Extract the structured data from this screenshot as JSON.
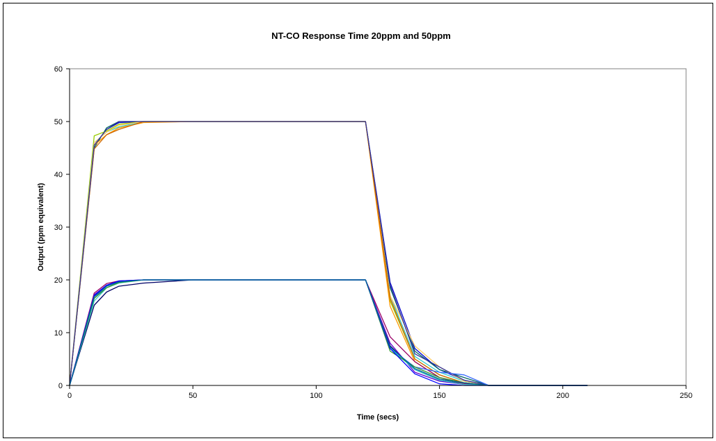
{
  "chart_data": {
    "type": "line",
    "title": "NT-CO Response Time 20ppm and 50ppm",
    "xlabel": "Time (secs)",
    "ylabel": "Output (ppm equivalent)",
    "xlim": [
      0,
      250
    ],
    "ylim": [
      0,
      60
    ],
    "x_ticks": [
      0,
      50,
      100,
      150,
      200,
      250
    ],
    "y_ticks": [
      0,
      10,
      20,
      30,
      40,
      50,
      60
    ],
    "grid": false,
    "legend": "none",
    "series": [
      {
        "color": "#0000cc",
        "points": [
          [
            0,
            0
          ],
          [
            10,
            45.5
          ],
          [
            15,
            48.5
          ],
          [
            20,
            49.8
          ],
          [
            30,
            50
          ],
          [
            50,
            50
          ],
          [
            120,
            50
          ],
          [
            130,
            19.5
          ],
          [
            140,
            7
          ],
          [
            150,
            3
          ],
          [
            160,
            1
          ],
          [
            170,
            0
          ],
          [
            210,
            0
          ]
        ]
      },
      {
        "color": "#006666",
        "points": [
          [
            0,
            0
          ],
          [
            10,
            45
          ],
          [
            15,
            48.8
          ],
          [
            20,
            50
          ],
          [
            30,
            50
          ],
          [
            50,
            50
          ],
          [
            120,
            50
          ],
          [
            130,
            18.5
          ],
          [
            140,
            6.5
          ],
          [
            150,
            3
          ],
          [
            160,
            1.5
          ],
          [
            170,
            0
          ],
          [
            210,
            0
          ]
        ]
      },
      {
        "color": "#99cc00",
        "points": [
          [
            0,
            0
          ],
          [
            10,
            47.3
          ],
          [
            15,
            48.2
          ],
          [
            20,
            49.5
          ],
          [
            30,
            50
          ],
          [
            50,
            50
          ],
          [
            120,
            50
          ],
          [
            130,
            16
          ],
          [
            140,
            5
          ],
          [
            150,
            2
          ],
          [
            160,
            0.5
          ],
          [
            170,
            0
          ],
          [
            210,
            0
          ]
        ]
      },
      {
        "color": "#33cccc",
        "points": [
          [
            0,
            0
          ],
          [
            10,
            46
          ],
          [
            15,
            48
          ],
          [
            20,
            49
          ],
          [
            30,
            50
          ],
          [
            50,
            50
          ],
          [
            120,
            50
          ],
          [
            130,
            17
          ],
          [
            140,
            5.5
          ],
          [
            150,
            2.5
          ],
          [
            160,
            0.8
          ],
          [
            170,
            0
          ],
          [
            210,
            0
          ]
        ]
      },
      {
        "color": "#ff9900",
        "points": [
          [
            0,
            0
          ],
          [
            10,
            45.5
          ],
          [
            15,
            47.5
          ],
          [
            20,
            48.8
          ],
          [
            30,
            49.8
          ],
          [
            50,
            50
          ],
          [
            120,
            50
          ],
          [
            130,
            15
          ],
          [
            140,
            4.5
          ],
          [
            150,
            1.5
          ],
          [
            160,
            0.3
          ],
          [
            170,
            0
          ],
          [
            210,
            0
          ]
        ]
      },
      {
        "color": "#ffcc66",
        "points": [
          [
            0,
            0
          ],
          [
            10,
            46
          ],
          [
            15,
            48
          ],
          [
            20,
            49.3
          ],
          [
            30,
            50
          ],
          [
            50,
            50
          ],
          [
            120,
            50
          ],
          [
            130,
            17
          ],
          [
            140,
            7.5
          ],
          [
            150,
            3.5
          ],
          [
            160,
            0.8
          ],
          [
            170,
            0
          ],
          [
            210,
            0
          ]
        ]
      },
      {
        "color": "#cc6600",
        "points": [
          [
            0,
            0
          ],
          [
            10,
            44.8
          ],
          [
            15,
            47.5
          ],
          [
            20,
            48.5
          ],
          [
            30,
            50
          ],
          [
            50,
            50
          ],
          [
            120,
            50
          ],
          [
            130,
            16.5
          ],
          [
            140,
            5
          ],
          [
            150,
            2
          ],
          [
            160,
            0.5
          ],
          [
            170,
            0
          ],
          [
            210,
            0
          ]
        ]
      },
      {
        "color": "#333399",
        "points": [
          [
            0,
            0
          ],
          [
            10,
            45.5
          ],
          [
            15,
            48.5
          ],
          [
            20,
            50
          ],
          [
            30,
            50
          ],
          [
            50,
            50
          ],
          [
            120,
            50
          ],
          [
            130,
            19
          ],
          [
            140,
            6
          ],
          [
            150,
            3.5
          ],
          [
            160,
            1
          ],
          [
            170,
            0
          ],
          [
            210,
            0
          ]
        ]
      },
      {
        "color": "#000066",
        "points": [
          [
            0,
            0
          ],
          [
            10,
            15.2
          ],
          [
            15,
            17.7
          ],
          [
            20,
            18.8
          ],
          [
            30,
            19.4
          ],
          [
            50,
            20
          ],
          [
            120,
            20
          ],
          [
            130,
            7.5
          ],
          [
            140,
            3
          ],
          [
            150,
            1
          ],
          [
            160,
            0.3
          ],
          [
            170,
            0
          ],
          [
            210,
            0
          ]
        ]
      },
      {
        "color": "#990066",
        "points": [
          [
            0,
            0
          ],
          [
            10,
            17.5
          ],
          [
            15,
            19.3
          ],
          [
            20,
            19.8
          ],
          [
            30,
            20
          ],
          [
            50,
            20
          ],
          [
            120,
            20
          ],
          [
            130,
            9.2
          ],
          [
            140,
            4.5
          ],
          [
            150,
            1.5
          ],
          [
            160,
            0.3
          ],
          [
            170,
            0
          ],
          [
            210,
            0
          ]
        ]
      },
      {
        "color": "#6600cc",
        "points": [
          [
            0,
            0
          ],
          [
            10,
            17.2
          ],
          [
            15,
            19
          ],
          [
            20,
            19.7
          ],
          [
            30,
            20
          ],
          [
            50,
            20
          ],
          [
            120,
            20
          ],
          [
            130,
            8
          ],
          [
            140,
            2.5
          ],
          [
            150,
            0.8
          ],
          [
            160,
            0.2
          ],
          [
            170,
            0
          ],
          [
            210,
            0
          ]
        ]
      },
      {
        "color": "#3366ff",
        "points": [
          [
            0,
            0
          ],
          [
            10,
            16.5
          ],
          [
            15,
            18.8
          ],
          [
            20,
            19.6
          ],
          [
            30,
            20
          ],
          [
            50,
            20
          ],
          [
            120,
            20
          ],
          [
            130,
            7
          ],
          [
            140,
            3.5
          ],
          [
            150,
            2.5
          ],
          [
            160,
            2
          ],
          [
            170,
            0
          ],
          [
            210,
            0
          ]
        ]
      },
      {
        "color": "#33cccc",
        "points": [
          [
            0,
            0
          ],
          [
            10,
            16
          ],
          [
            15,
            18.5
          ],
          [
            20,
            19.4
          ],
          [
            30,
            20
          ],
          [
            50,
            20
          ],
          [
            120,
            20
          ],
          [
            130,
            7
          ],
          [
            140,
            3
          ],
          [
            150,
            1
          ],
          [
            160,
            0.2
          ],
          [
            170,
            0
          ],
          [
            210,
            0
          ]
        ]
      },
      {
        "color": "#339933",
        "points": [
          [
            0,
            0
          ],
          [
            10,
            16.5
          ],
          [
            15,
            18.5
          ],
          [
            20,
            19.5
          ],
          [
            30,
            20
          ],
          [
            50,
            20
          ],
          [
            120,
            20
          ],
          [
            130,
            6.5
          ],
          [
            140,
            3.5
          ],
          [
            150,
            1.5
          ],
          [
            160,
            0.5
          ],
          [
            170,
            0
          ],
          [
            210,
            0
          ]
        ]
      },
      {
        "color": "#0000ff",
        "points": [
          [
            0,
            0
          ],
          [
            10,
            17
          ],
          [
            15,
            19
          ],
          [
            20,
            19.8
          ],
          [
            30,
            20
          ],
          [
            50,
            20
          ],
          [
            120,
            20
          ],
          [
            130,
            7
          ],
          [
            140,
            2.2
          ],
          [
            150,
            0.3
          ],
          [
            160,
            0
          ],
          [
            170,
            0
          ],
          [
            210,
            0
          ]
        ]
      },
      {
        "color": "#006699",
        "points": [
          [
            0,
            0
          ],
          [
            10,
            16.8
          ],
          [
            15,
            18.8
          ],
          [
            20,
            19.6
          ],
          [
            30,
            20
          ],
          [
            50,
            20
          ],
          [
            120,
            20
          ],
          [
            130,
            7.3
          ],
          [
            140,
            3.2
          ],
          [
            150,
            1.2
          ],
          [
            160,
            0.5
          ],
          [
            170,
            0
          ],
          [
            210,
            0
          ]
        ]
      }
    ]
  }
}
